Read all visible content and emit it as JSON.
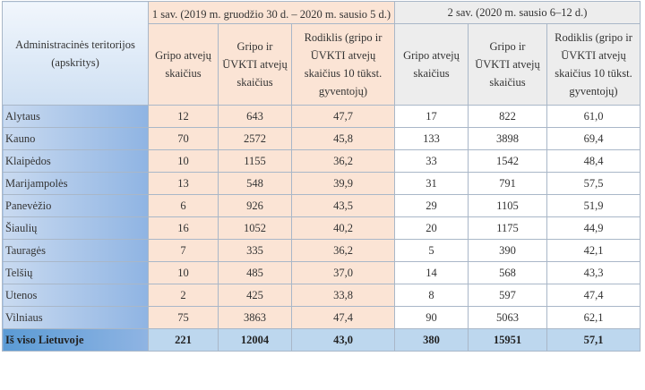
{
  "table": {
    "header": {
      "region": "Administracinės teritorijos (apskritys)",
      "week1": "1 sav. (2019 m. gruodžio 30 d. – 2020 m. sausio 5 d.)",
      "week2": "2 sav. (2020 m. sausio 6–12 d.)",
      "columns": [
        "Gripo atvejų skaičius",
        "Gripo ir ŪVKTI atvejų skaičius",
        "Rodiklis (gripo ir ŪVKTI atvejų skaičius 10 tūkst. gyventojų)",
        "Gripo atvejų skaičius",
        "Gripo ir ŪVKTI atvejų skaičius",
        "Rodiklis (gripo ir ŪVKTI atvejų skaičius 10 tūkst. gyventojų)"
      ]
    },
    "rows": [
      [
        "Alytaus",
        "12",
        "643",
        "47,7",
        "17",
        "822",
        "61,0"
      ],
      [
        "Kauno",
        "70",
        "2572",
        "45,8",
        "133",
        "3898",
        "69,4"
      ],
      [
        "Klaipėdos",
        "10",
        "1155",
        "36,2",
        "33",
        "1542",
        "48,4"
      ],
      [
        "Marijampolės",
        "13",
        "548",
        "39,9",
        "31",
        "791",
        "57,5"
      ],
      [
        "Panevėžio",
        "6",
        "926",
        "43,5",
        "29",
        "1105",
        "51,9"
      ],
      [
        "Šiaulių",
        "16",
        "1052",
        "40,2",
        "20",
        "1175",
        "44,9"
      ],
      [
        "Tauragės",
        "7",
        "335",
        "36,2",
        "5",
        "390",
        "42,1"
      ],
      [
        "Telšių",
        "10",
        "485",
        "37,0",
        "14",
        "568",
        "43,3"
      ],
      [
        "Utenos",
        "2",
        "425",
        "33,8",
        "8",
        "597",
        "47,4"
      ],
      [
        "Vilniaus",
        "75",
        "3863",
        "47,4",
        "90",
        "5063",
        "62,1"
      ]
    ],
    "total": [
      "Iš viso Lietuvoje",
      "221",
      "12004",
      "43,0",
      "380",
      "15951",
      "57,1"
    ]
  }
}
